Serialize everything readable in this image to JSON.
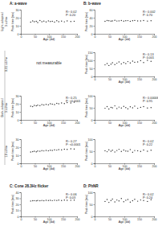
{
  "panel_titles": [
    "A: a-wave",
    "B: b-wave",
    "C: Cone 28.3Hz flicker",
    "D: PhNR"
  ],
  "row_groups": [
    "Light-adapted",
    "Dark-adapted"
  ],
  "row_labels": [
    "3 cd/m²",
    "0.01 cd/m²",
    "3 cd/m²",
    "10 cd/m²"
  ],
  "note": "not measurable",
  "chart_data": [
    {
      "type": "scatter",
      "xlabel": "Age (dd)",
      "ylabel": "Peak time (ms)",
      "marker": "circle",
      "color": "#333333",
      "grid": false,
      "xlim": [
        0,
        200
      ],
      "xticks": [
        0,
        50,
        100,
        150,
        200
      ],
      "ylim": [
        0,
        30
      ],
      "yticks": [
        0,
        10,
        20,
        30
      ],
      "annotations": [
        "R²: 0.02",
        "P: 0.20"
      ],
      "x": [
        35,
        42,
        48,
        55,
        60,
        68,
        75,
        82,
        90,
        98,
        105,
        112,
        120,
        128,
        135,
        145,
        155,
        165,
        178,
        190
      ],
      "values": [
        14.5,
        16,
        15,
        15.5,
        14,
        16.5,
        15,
        15.8,
        14.8,
        16,
        15.2,
        15.5,
        14.6,
        16.2,
        15,
        15.7,
        14.9,
        16,
        15.3,
        15.6
      ]
    },
    {
      "type": "scatter",
      "xlabel": "Age (dd)",
      "ylabel": "Peak time (ms)",
      "marker": "circle",
      "color": "#333333",
      "grid": false,
      "xlim": [
        0,
        200
      ],
      "xticks": [
        0,
        50,
        100,
        150,
        200
      ],
      "ylim": [
        0,
        60
      ],
      "yticks": [
        0,
        20,
        40,
        60
      ],
      "annotations": [
        "R²: 0.002",
        "P: 0.70"
      ],
      "x": [
        35,
        42,
        48,
        55,
        60,
        68,
        75,
        82,
        90,
        98,
        105,
        112,
        120,
        128,
        135,
        145,
        155,
        165,
        178,
        190
      ],
      "values": [
        31,
        33,
        32.5,
        31.5,
        32,
        33.5,
        31.8,
        32.2,
        33,
        31.6,
        32.4,
        32.8,
        31.2,
        32.6,
        33.2,
        31.9,
        32.1,
        32.9,
        31.7,
        32.5
      ]
    },
    {
      "type": "scatter",
      "xlabel": "Age (dd)",
      "ylabel": "Peak time (ms)",
      "marker": "circle",
      "color": "#333333",
      "grid": false,
      "xlim": [
        0,
        200
      ],
      "xticks": [
        0,
        50,
        100,
        150,
        200
      ],
      "ylim": [
        0,
        150
      ],
      "yticks": [
        0,
        50,
        100,
        150
      ],
      "annotations": [
        "R²: 0.13",
        "P: 0.001"
      ],
      "x": [
        35,
        42,
        48,
        55,
        60,
        68,
        75,
        82,
        90,
        98,
        105,
        112,
        120,
        128,
        135,
        145,
        155,
        165,
        178,
        190
      ],
      "values": [
        72,
        80,
        68,
        76,
        85,
        74,
        82,
        90,
        78,
        86,
        80,
        92,
        84,
        95,
        88,
        90,
        98,
        86,
        100,
        94
      ]
    },
    {
      "type": "scatter",
      "xlabel": "Age (dd)",
      "ylabel": "Peak time (ms)",
      "marker": "circle",
      "color": "#333333",
      "grid": false,
      "xlim": [
        0,
        200
      ],
      "xticks": [
        0,
        50,
        100,
        150,
        200
      ],
      "ylim": [
        0,
        30
      ],
      "yticks": [
        0,
        10,
        20,
        30
      ],
      "annotations": [
        "R²: 0.25",
        "P: <0.0001"
      ],
      "x": [
        35,
        42,
        48,
        55,
        60,
        68,
        75,
        82,
        90,
        98,
        105,
        112,
        120,
        128,
        135,
        145,
        155,
        165,
        178,
        190
      ],
      "values": [
        17,
        16.5,
        18,
        17.5,
        18.2,
        17.8,
        19,
        18.5,
        19.2,
        18.8,
        20,
        19.5,
        19,
        20.5,
        20,
        21,
        20.2,
        21.5,
        21,
        22
      ]
    },
    {
      "type": "scatter",
      "xlabel": "Age (dd)",
      "ylabel": "Peak time (ms)",
      "marker": "circle",
      "color": "#333333",
      "grid": false,
      "xlim": [
        0,
        200
      ],
      "xticks": [
        0,
        50,
        100,
        150,
        200
      ],
      "ylim": [
        0,
        100
      ],
      "yticks": [
        0,
        50,
        100
      ],
      "annotations": [
        "R²: 0.00006",
        "P: 0.95"
      ],
      "x": [
        35,
        42,
        48,
        55,
        60,
        68,
        75,
        82,
        90,
        98,
        105,
        112,
        120,
        128,
        135,
        145,
        155,
        165,
        178,
        190
      ],
      "values": [
        48,
        55,
        45,
        52,
        50,
        58,
        47,
        53,
        49,
        56,
        51,
        46,
        54,
        50,
        57,
        48,
        52,
        55,
        49,
        51
      ]
    },
    {
      "type": "scatter",
      "xlabel": "Age (dd)",
      "ylabel": "Peak time (ms)",
      "marker": "circle",
      "color": "#333333",
      "grid": false,
      "xlim": [
        0,
        200
      ],
      "xticks": [
        0,
        50,
        100,
        150,
        200
      ],
      "ylim": [
        0,
        30
      ],
      "yticks": [
        0,
        10,
        20,
        30
      ],
      "annotations": [
        "R²: 0.27",
        "P: <0.0001"
      ],
      "x": [
        35,
        42,
        48,
        55,
        60,
        68,
        75,
        82,
        90,
        98,
        105,
        112,
        120,
        128,
        135,
        145,
        155,
        165,
        178,
        190
      ],
      "values": [
        14,
        14.5,
        15,
        14.2,
        15.2,
        15,
        15.8,
        15.4,
        16,
        15.6,
        16.2,
        16,
        16.8,
        16.4,
        17,
        16.8,
        17.5,
        17.2,
        18,
        17.8
      ]
    },
    {
      "type": "scatter",
      "xlabel": "Age (dd)",
      "ylabel": "Peak time (ms)",
      "marker": "circle",
      "color": "#333333",
      "grid": false,
      "xlim": [
        0,
        200
      ],
      "xticks": [
        0,
        50,
        100,
        150,
        200
      ],
      "ylim": [
        0,
        100
      ],
      "yticks": [
        0,
        50,
        100
      ],
      "annotations": [
        "R²: 0.02",
        "P: 0.22"
      ],
      "x": [
        35,
        42,
        48,
        55,
        60,
        68,
        75,
        82,
        90,
        98,
        105,
        112,
        120,
        128,
        135,
        145,
        155,
        165,
        178,
        190
      ],
      "values": [
        52,
        48,
        56,
        50,
        54,
        47,
        53,
        58,
        49,
        55,
        51,
        50,
        57,
        46,
        53,
        52,
        49,
        55,
        50,
        54
      ]
    },
    {
      "type": "scatter",
      "xlabel": "Age (dd)",
      "ylabel": "Peak time (ms)",
      "marker": "circle",
      "color": "#333333",
      "grid": false,
      "xlim": [
        0,
        200
      ],
      "xticks": [
        0,
        50,
        100,
        150,
        200
      ],
      "ylim": [
        0,
        40
      ],
      "yticks": [
        0,
        10,
        20,
        30,
        40
      ],
      "annotations": [
        "R²: 0.06",
        "P: 0.03"
      ],
      "x": [
        35,
        42,
        48,
        55,
        60,
        68,
        75,
        82,
        90,
        98,
        105,
        112,
        120,
        128,
        135,
        145,
        155,
        165,
        178,
        190
      ],
      "values": [
        25.5,
        26,
        26.2,
        25.8,
        26.4,
        26,
        26.5,
        26.1,
        26.6,
        26.3,
        26.7,
        26.2,
        26.8,
        26.5,
        26.9,
        26.4,
        27,
        26.6,
        26.8,
        27
      ]
    },
    {
      "type": "scatter",
      "xlabel": "Age (dd)",
      "ylabel": "Peak time (ms)",
      "marker": "circle",
      "color": "#333333",
      "grid": false,
      "xlim": [
        0,
        200
      ],
      "xticks": [
        0,
        50,
        100,
        150,
        200
      ],
      "ylim": [
        0,
        100
      ],
      "yticks": [
        0,
        50,
        100
      ],
      "annotations": [
        "R²: 0.02",
        "P: 0.24"
      ],
      "x": [
        35,
        42,
        48,
        55,
        60,
        68,
        75,
        82,
        90,
        98,
        105,
        112,
        120,
        128,
        135,
        145,
        155,
        165,
        178,
        190
      ],
      "values": [
        62,
        70,
        58,
        66,
        72,
        60,
        68,
        64,
        74,
        61,
        67,
        70,
        59,
        65,
        71,
        63,
        68,
        66,
        62,
        69
      ]
    }
  ]
}
